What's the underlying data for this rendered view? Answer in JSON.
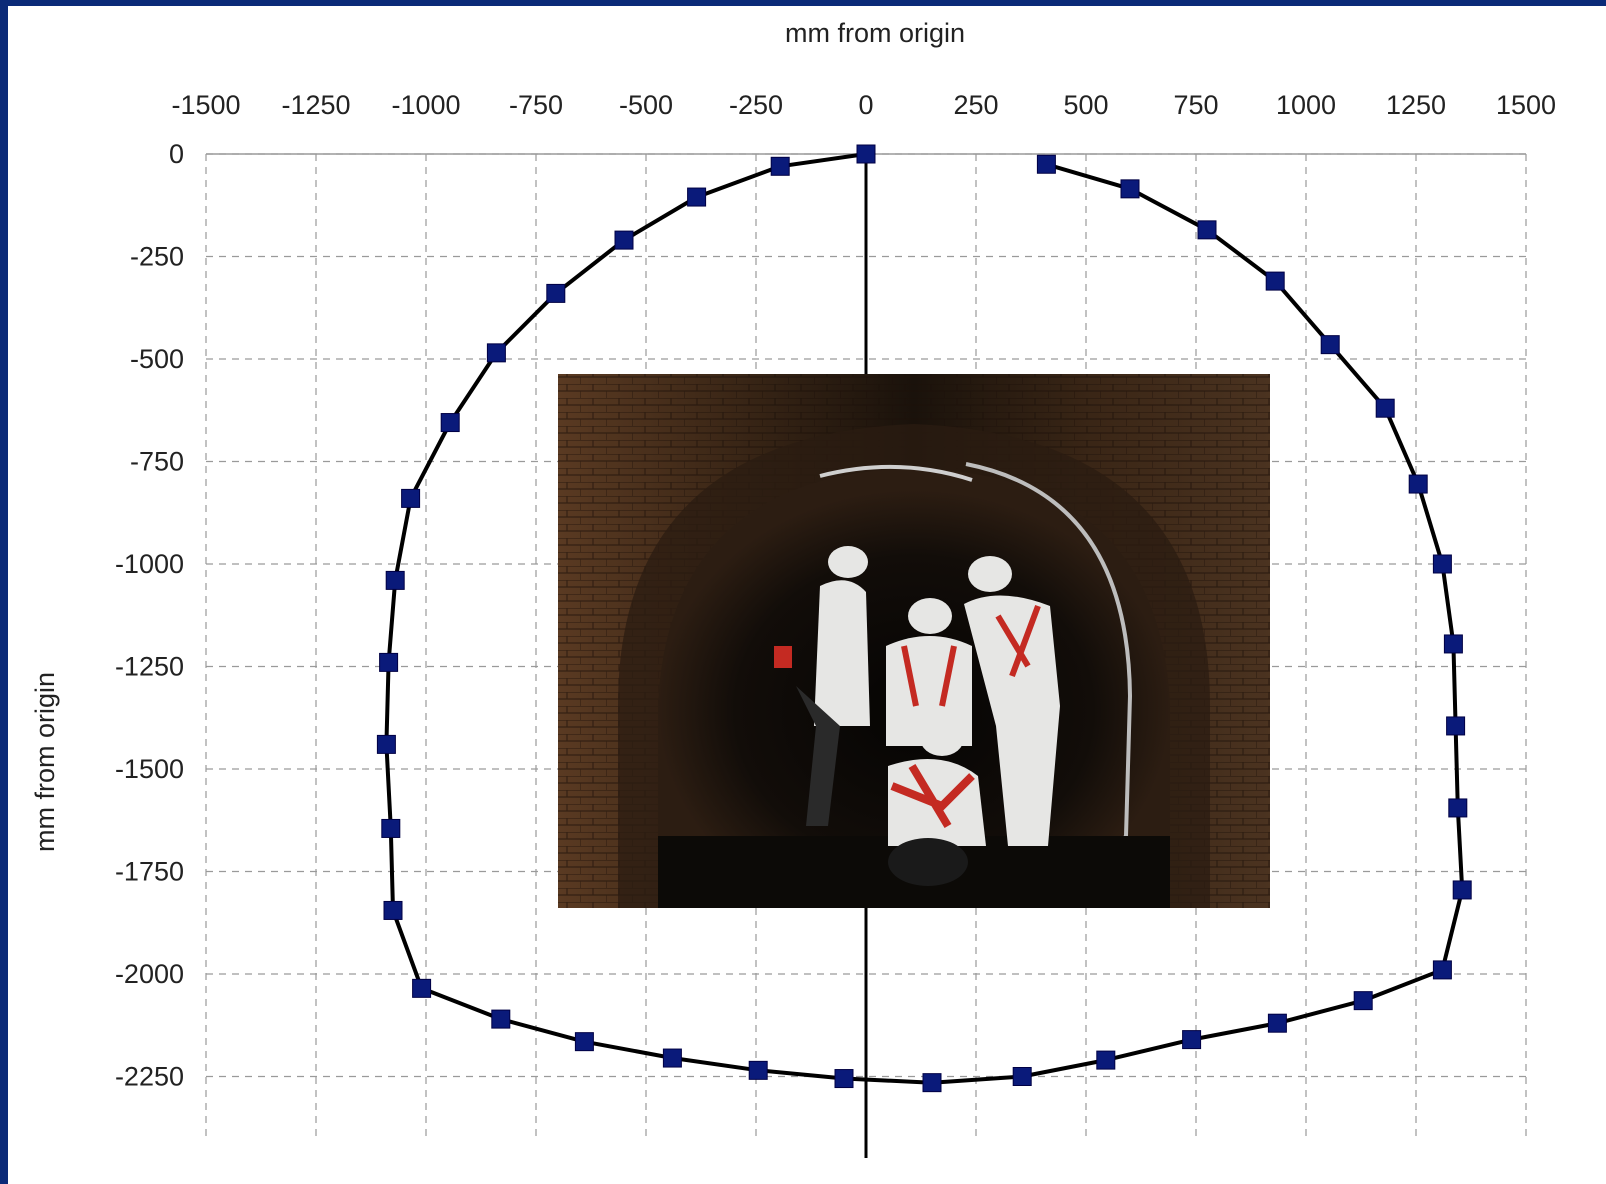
{
  "chart_data": {
    "type": "scatter",
    "x_axis": {
      "label": "mm from origin",
      "position": "top",
      "range": [
        -1500,
        1500
      ],
      "ticks": [
        -1500,
        -1250,
        -1000,
        -750,
        -500,
        -250,
        0,
        250,
        500,
        750,
        1000,
        1250,
        1500
      ]
    },
    "y_axis": {
      "label": "mm from origin",
      "range": [
        -2400,
        0
      ],
      "ticks": [
        0,
        -250,
        -500,
        -750,
        -1000,
        -1250,
        -1500,
        -1750,
        -2000,
        -2250
      ]
    },
    "grid": true,
    "gridline_style": "dashed",
    "legend": "none",
    "series": [
      {
        "marker": "square",
        "line": "solid",
        "color": "#000000",
        "marker_color": "#0a1a7a",
        "points": [
          {
            "x": 410,
            "y": -25
          },
          {
            "x": 600,
            "y": -85
          },
          {
            "x": 775,
            "y": -185
          },
          {
            "x": 930,
            "y": -310
          },
          {
            "x": 1055,
            "y": -465
          },
          {
            "x": 1180,
            "y": -620
          },
          {
            "x": 1255,
            "y": -805
          },
          {
            "x": 1310,
            "y": -1000
          },
          {
            "x": 1335,
            "y": -1195
          },
          {
            "x": 1340,
            "y": -1395
          },
          {
            "x": 1345,
            "y": -1595
          },
          {
            "x": 1355,
            "y": -1795
          },
          {
            "x": 1310,
            "y": -1990
          },
          {
            "x": 1130,
            "y": -2065
          },
          {
            "x": 935,
            "y": -2120
          },
          {
            "x": 740,
            "y": -2160
          },
          {
            "x": 545,
            "y": -2210
          },
          {
            "x": 355,
            "y": -2250
          },
          {
            "x": 150,
            "y": -2265
          },
          {
            "x": -50,
            "y": -2255
          },
          {
            "x": -245,
            "y": -2235
          },
          {
            "x": -440,
            "y": -2205
          },
          {
            "x": -640,
            "y": -2165
          },
          {
            "x": -830,
            "y": -2110
          },
          {
            "x": -1010,
            "y": -2035
          },
          {
            "x": -1075,
            "y": -1845
          },
          {
            "x": -1080,
            "y": -1645
          },
          {
            "x": -1090,
            "y": -1440
          },
          {
            "x": -1085,
            "y": -1240
          },
          {
            "x": -1070,
            "y": -1040
          },
          {
            "x": -1035,
            "y": -840
          },
          {
            "x": -945,
            "y": -655
          },
          {
            "x": -840,
            "y": -485
          },
          {
            "x": -705,
            "y": -340
          },
          {
            "x": -550,
            "y": -210
          },
          {
            "x": -385,
            "y": -105
          },
          {
            "x": -195,
            "y": -30
          },
          {
            "x": 0,
            "y": 0
          }
        ]
      }
    ]
  },
  "inset_photo": {
    "subject": "brick sewer tunnel with workers",
    "colors": {
      "brick": "#4a2e1c",
      "dark": "#0e0b08",
      "suit": "#e8e8e6",
      "harness": "#c42a22"
    }
  }
}
